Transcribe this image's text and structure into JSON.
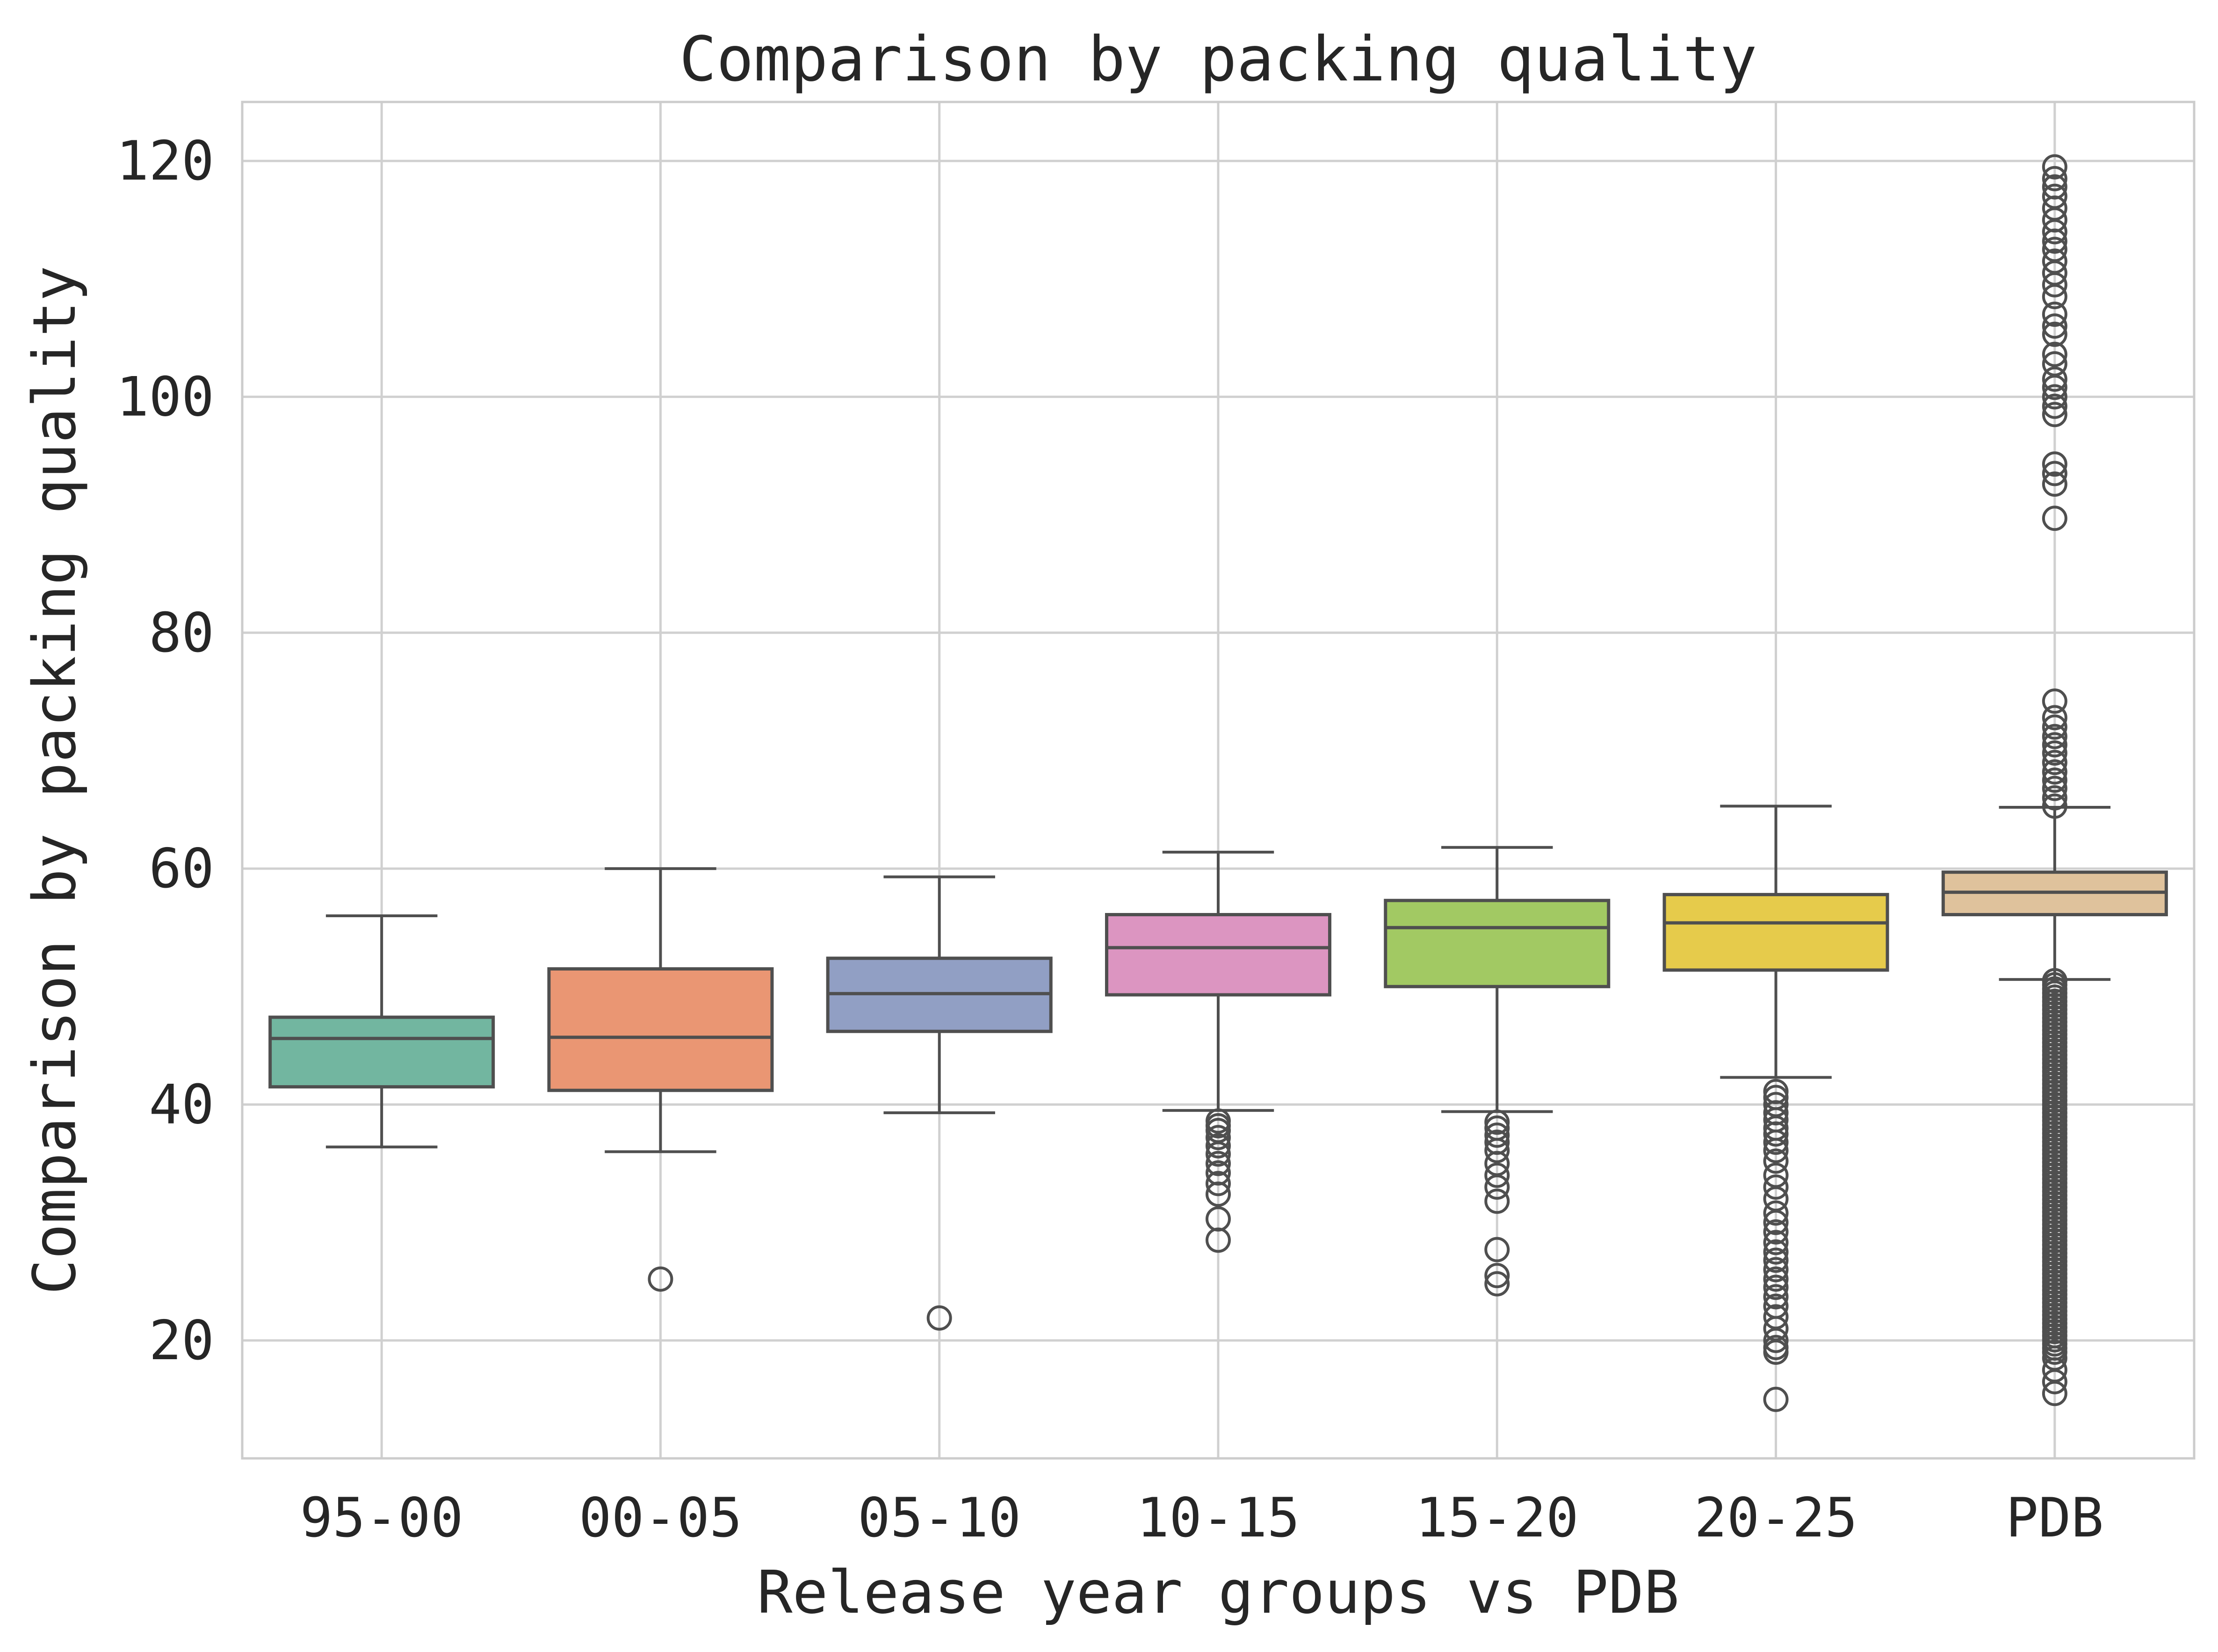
{
  "chart_data": {
    "type": "box",
    "title": "Comparison by packing quality",
    "xlabel": "Release year groups vs PDB",
    "ylabel": "Comparison by packing quality",
    "ylim": [
      10,
      125
    ],
    "yticks": [
      20,
      40,
      60,
      80,
      100,
      120
    ],
    "grid": true,
    "categories": [
      "95-00",
      "00-05",
      "05-10",
      "10-15",
      "15-20",
      "20-25",
      "PDB"
    ],
    "colors": [
      "#72b6a0",
      "#ea9673",
      "#919fc4",
      "#dc95c1",
      "#a2c963",
      "#e6cb4b",
      "#dfc29c"
    ],
    "boxes": [
      {
        "whislo": 36.4,
        "q1": 41.5,
        "med": 45.6,
        "q3": 47.4,
        "whishi": 56.0,
        "fliers": []
      },
      {
        "whislo": 36.0,
        "q1": 41.2,
        "med": 45.7,
        "q3": 51.5,
        "whishi": 60.0,
        "fliers": [
          25.2
        ]
      },
      {
        "whislo": 39.3,
        "q1": 46.2,
        "med": 49.4,
        "q3": 52.4,
        "whishi": 59.3,
        "fliers": [
          21.9
        ]
      },
      {
        "whislo": 39.5,
        "q1": 49.3,
        "med": 53.3,
        "q3": 56.1,
        "whishi": 61.4,
        "fliers": [
          38.6,
          38.2,
          37.8,
          37.2,
          36.5,
          35.8,
          35.0,
          34.2,
          33.3,
          32.4,
          30.3,
          28.5
        ]
      },
      {
        "whislo": 39.4,
        "q1": 50.0,
        "med": 55.0,
        "q3": 57.3,
        "whishi": 61.8,
        "fliers": [
          38.5,
          38.0,
          37.4,
          36.8,
          36.1,
          35.0,
          34.0,
          33.0,
          31.8,
          27.7,
          25.5,
          24.8
        ]
      },
      {
        "whislo": 42.3,
        "q1": 51.4,
        "med": 55.4,
        "q3": 57.8,
        "whishi": 65.3,
        "fliers": [
          41.1,
          40.6,
          40.0,
          39.3,
          38.7,
          38.0,
          37.5,
          36.8,
          36.1,
          35.2,
          34.0,
          33.0,
          32.0,
          30.8,
          30.0,
          29.2,
          28.3,
          27.5,
          26.8,
          26.0,
          25.2,
          24.5,
          23.7,
          22.9,
          22.0,
          21.0,
          20.0,
          19.4,
          19.0,
          15.0
        ]
      },
      {
        "whislo": 50.6,
        "q1": 56.1,
        "med": 58.0,
        "q3": 59.7,
        "whishi": 65.2,
        "fliers": [
          119.5,
          118.5,
          117.8,
          117.0,
          116.0,
          115.0,
          114.0,
          113.2,
          112.5,
          111.5,
          110.5,
          109.5,
          108.5,
          107.0,
          106.0,
          105.3,
          103.6,
          102.8,
          101.5,
          100.8,
          100.0,
          99.2,
          98.5,
          94.3,
          93.5,
          92.6,
          89.7,
          74.2,
          72.8,
          72.0,
          71.2,
          70.5,
          69.8,
          69.0,
          68.2,
          67.5,
          66.8,
          66.0,
          65.3,
          50.5,
          15.5,
          16.5,
          17.5,
          18.5
        ]
      }
    ]
  }
}
